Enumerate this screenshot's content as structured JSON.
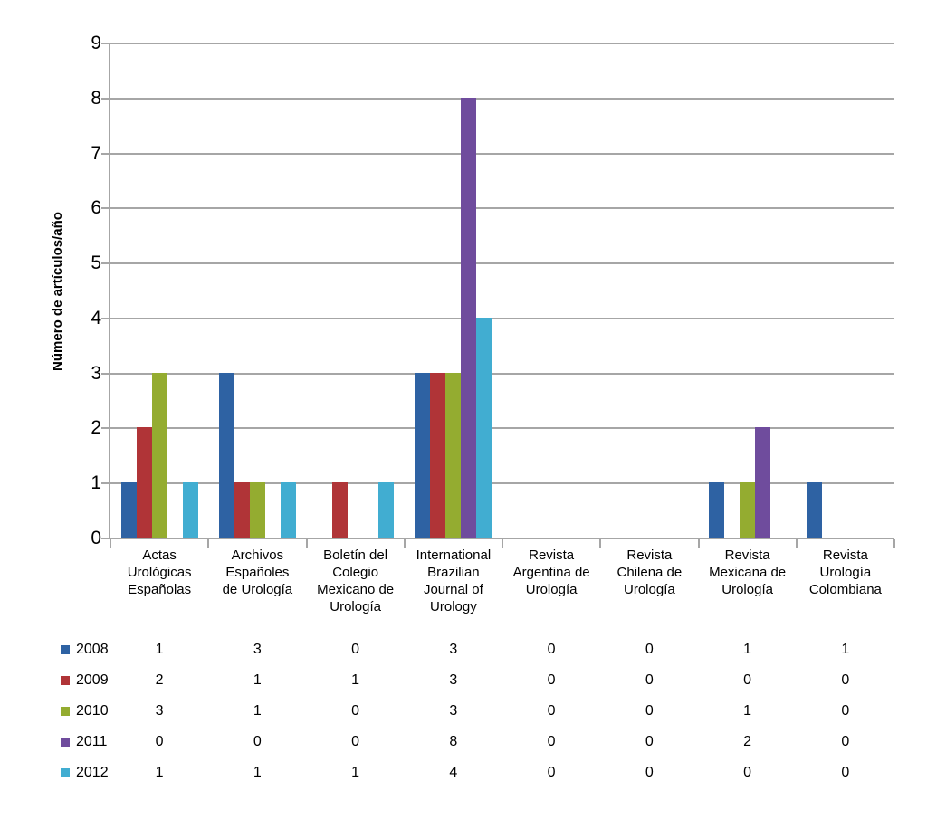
{
  "figure": {
    "background": "#ffffff",
    "grid_color": "#a6a6a6",
    "text_color": "#000000"
  },
  "chart_data": {
    "type": "bar",
    "title": "",
    "xlabel": "",
    "ylabel": "Número de artículos/año",
    "ylim": [
      0,
      9
    ],
    "ytick_step": 1,
    "grid": true,
    "legend_position": "table-rows-below-chart",
    "categories": [
      "Actas Urológicas Españolas",
      "Archivos Españoles de Urología",
      "Boletín del Colegio Mexicano de Urología",
      "International Brazilian Journal of Urology",
      "Revista Argentina de Urología",
      "Revista Chilena de Urología",
      "Revista Mexicana de Urología",
      "Revista Urología Colombiana"
    ],
    "series": [
      {
        "name": "2008",
        "color": "#2e62a3",
        "values": [
          1,
          3,
          0,
          3,
          0,
          0,
          1,
          1
        ]
      },
      {
        "name": "2009",
        "color": "#b03437",
        "values": [
          2,
          1,
          1,
          3,
          0,
          0,
          0,
          0
        ]
      },
      {
        "name": "2010",
        "color": "#94ac30",
        "values": [
          3,
          1,
          0,
          3,
          0,
          0,
          1,
          0
        ]
      },
      {
        "name": "2011",
        "color": "#6f4c9d",
        "values": [
          0,
          0,
          0,
          8,
          0,
          0,
          2,
          0
        ]
      },
      {
        "name": "2012",
        "color": "#41add1",
        "values": [
          1,
          1,
          1,
          4,
          0,
          0,
          0,
          0
        ]
      }
    ]
  }
}
